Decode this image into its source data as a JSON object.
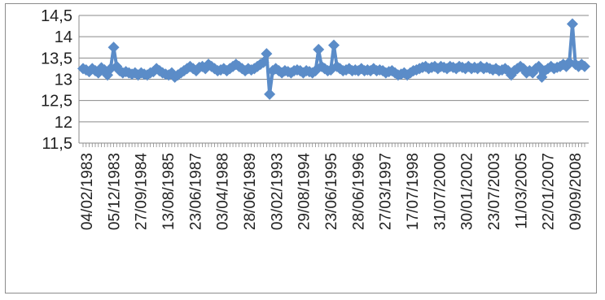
{
  "chart_data": {
    "type": "line",
    "title": "",
    "xlabel": "",
    "ylabel": "",
    "ylim": [
      11.5,
      14.5
    ],
    "y_ticks": [
      "11,5",
      "12",
      "12,5",
      "13",
      "13,5",
      "14",
      "14,5"
    ],
    "y_tick_values": [
      11.5,
      12,
      12.5,
      13,
      13.5,
      14,
      14.5
    ],
    "x_tick_labels": [
      "04/02/1983",
      "05/12/1983",
      "27/09/1984",
      "13/08/1985",
      "23/06/1987",
      "03/04/1988",
      "28/06/1989",
      "03/02/1993",
      "29/08/1994",
      "23/06/1995",
      "28/06/1996",
      "27/03/1997",
      "17/07/1998",
      "31/07/2000",
      "30/01/2002",
      "23/07/2003",
      "11/03/2005",
      "22/01/2007",
      "09/09/2008"
    ],
    "grid": true,
    "legend": "none",
    "marker": "diamond",
    "series_color": "#5b8cc8",
    "series": [
      {
        "values": [
          13.25,
          13.22,
          13.18,
          13.25,
          13.2,
          13.15,
          13.27,
          13.22,
          13.1,
          13.25,
          13.75,
          13.3,
          13.2,
          13.15,
          13.18,
          13.15,
          13.12,
          13.15,
          13.1,
          13.15,
          13.12,
          13.1,
          13.15,
          13.18,
          13.25,
          13.2,
          13.15,
          13.12,
          13.1,
          13.15,
          13.05,
          13.1,
          13.15,
          13.2,
          13.25,
          13.3,
          13.25,
          13.2,
          13.28,
          13.3,
          13.25,
          13.35,
          13.3,
          13.25,
          13.2,
          13.22,
          13.25,
          13.2,
          13.25,
          13.3,
          13.35,
          13.3,
          13.25,
          13.2,
          13.25,
          13.22,
          13.25,
          13.3,
          13.35,
          13.4,
          13.6,
          12.65,
          13.2,
          13.25,
          13.2,
          13.15,
          13.2,
          13.18,
          13.15,
          13.2,
          13.22,
          13.2,
          13.15,
          13.2,
          13.18,
          13.15,
          13.2,
          13.7,
          13.3,
          13.25,
          13.2,
          13.22,
          13.8,
          13.3,
          13.25,
          13.2,
          13.22,
          13.25,
          13.2,
          13.22,
          13.2,
          13.25,
          13.2,
          13.22,
          13.2,
          13.25,
          13.2,
          13.22,
          13.2,
          13.15,
          13.18,
          13.2,
          13.15,
          13.1,
          13.12,
          13.15,
          13.1,
          13.15,
          13.2,
          13.22,
          13.25,
          13.28,
          13.3,
          13.25,
          13.28,
          13.3,
          13.25,
          13.3,
          13.28,
          13.25,
          13.3,
          13.28,
          13.25,
          13.3,
          13.28,
          13.25,
          13.3,
          13.25,
          13.28,
          13.25,
          13.3,
          13.25,
          13.28,
          13.25,
          13.22,
          13.25,
          13.2,
          13.22,
          13.25,
          13.2,
          13.1,
          13.2,
          13.25,
          13.3,
          13.25,
          13.15,
          13.2,
          13.15,
          13.25,
          13.3,
          13.05,
          13.2,
          13.25,
          13.3,
          13.25,
          13.28,
          13.3,
          13.35,
          13.3,
          13.4,
          14.3,
          13.35,
          13.3,
          13.35,
          13.3
        ]
      }
    ]
  }
}
